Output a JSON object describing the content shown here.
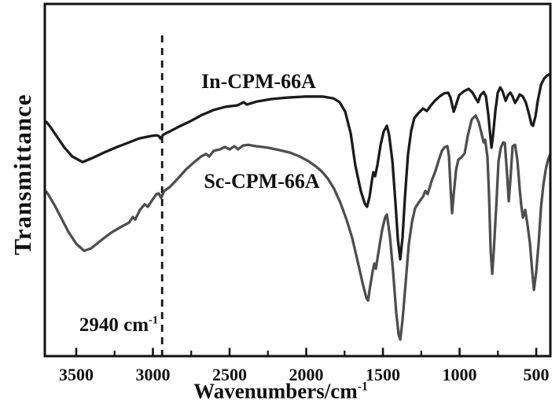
{
  "figure": {
    "y_axis_title": "Transmittance",
    "x_axis_title_base": "Wavenumbers/cm",
    "x_axis_title_sup": "-1",
    "annotation_text": "2940 cm",
    "annotation_sup": "-1",
    "label_top": "In-CPM-66A",
    "label_bottom": "Sc-CPM-66A"
  },
  "chart_data": {
    "type": "line",
    "title": "",
    "xlabel": "Wavenumbers/cm^-1",
    "ylabel": "Transmittance",
    "grid": false,
    "legend_position": "inline-labels",
    "x_axis": {
      "unit": "cm^-1",
      "direction": "decreasing",
      "range": [
        3705,
        408
      ],
      "major_ticks": [
        3500,
        3000,
        2500,
        2000,
        1500,
        1000,
        500
      ],
      "minor_ticks": [
        3250,
        2750,
        2250,
        1750,
        1250,
        750
      ],
      "tick_labels": [
        "3500",
        "3000",
        "2500",
        "2000",
        "1500",
        "1000",
        "500"
      ]
    },
    "y_axis": {
      "label": "Transmittance",
      "unit": "arbitrary",
      "range": [
        0,
        100
      ],
      "ticks": "none"
    },
    "reference_line": {
      "wavenumber": 2940,
      "label": "2940 cm^-1",
      "style": "dashed",
      "color": "#111111"
    },
    "frame_color": "#111111",
    "series": [
      {
        "name": "In-CPM-66A",
        "color": "#1b1b1b",
        "points": [
          [
            3695,
            66.5
          ],
          [
            3674,
            65.4
          ],
          [
            3649,
            63.8
          ],
          [
            3618,
            61.8
          ],
          [
            3577,
            59.2
          ],
          [
            3526,
            56.7
          ],
          [
            3459,
            55.1
          ],
          [
            3392,
            56.3
          ],
          [
            3320,
            57.8
          ],
          [
            3244,
            59.2
          ],
          [
            3167,
            60.5
          ],
          [
            3090,
            61.8
          ],
          [
            3013,
            62.5
          ],
          [
            2977,
            62.7
          ],
          [
            2962,
            62.5
          ],
          [
            2951,
            61.8
          ],
          [
            2931,
            62.9
          ],
          [
            2890,
            63.8
          ],
          [
            2828,
            65.2
          ],
          [
            2756,
            66.7
          ],
          [
            2679,
            68.5
          ],
          [
            2603,
            69.9
          ],
          [
            2526,
            70.8
          ],
          [
            2449,
            71.2
          ],
          [
            2408,
            72.1
          ],
          [
            2387,
            71.4
          ],
          [
            2321,
            72.3
          ],
          [
            2228,
            73.0
          ],
          [
            2126,
            73.4
          ],
          [
            2008,
            73.7
          ],
          [
            1895,
            73.7
          ],
          [
            1823,
            73.2
          ],
          [
            1782,
            72.1
          ],
          [
            1746,
            69.4
          ],
          [
            1710,
            63.2
          ],
          [
            1680,
            54.2
          ],
          [
            1644,
            46.9
          ],
          [
            1618,
            43.3
          ],
          [
            1603,
            42.4
          ],
          [
            1587,
            45.3
          ],
          [
            1572,
            49.8
          ],
          [
            1562,
            52.2
          ],
          [
            1551,
            51.1
          ],
          [
            1536,
            54.2
          ],
          [
            1515,
            60.0
          ],
          [
            1495,
            63.8
          ],
          [
            1474,
            65.4
          ],
          [
            1459,
            62.7
          ],
          [
            1438,
            55.4
          ],
          [
            1418,
            43.5
          ],
          [
            1402,
            33.0
          ],
          [
            1387,
            27.5
          ],
          [
            1372,
            33.7
          ],
          [
            1356,
            45.3
          ],
          [
            1336,
            57.4
          ],
          [
            1315,
            64.1
          ],
          [
            1295,
            67.6
          ],
          [
            1269,
            69.0
          ],
          [
            1238,
            70.3
          ],
          [
            1213,
            69.6
          ],
          [
            1187,
            71.2
          ],
          [
            1161,
            72.5
          ],
          [
            1131,
            73.7
          ],
          [
            1100,
            74.6
          ],
          [
            1074,
            74.8
          ],
          [
            1059,
            73.4
          ],
          [
            1038,
            69.4
          ],
          [
            1023,
            71.4
          ],
          [
            1003,
            74.1
          ],
          [
            972,
            75.2
          ],
          [
            941,
            75.9
          ],
          [
            915,
            74.8
          ],
          [
            895,
            73.2
          ],
          [
            879,
            72.1
          ],
          [
            864,
            74.1
          ],
          [
            843,
            75.0
          ],
          [
            828,
            73.7
          ],
          [
            813,
            68.8
          ],
          [
            802,
            63.6
          ],
          [
            792,
            59.2
          ],
          [
            782,
            62.7
          ],
          [
            766,
            69.9
          ],
          [
            751,
            74.8
          ],
          [
            735,
            76.3
          ],
          [
            720,
            75.2
          ],
          [
            700,
            72.5
          ],
          [
            684,
            74.1
          ],
          [
            669,
            74.8
          ],
          [
            654,
            73.7
          ],
          [
            638,
            71.9
          ],
          [
            623,
            73.0
          ],
          [
            608,
            74.3
          ],
          [
            587,
            73.7
          ],
          [
            567,
            71.9
          ],
          [
            546,
            68.5
          ],
          [
            531,
            65.8
          ],
          [
            521,
            65.4
          ],
          [
            505,
            68.1
          ],
          [
            490,
            72.5
          ],
          [
            469,
            77.0
          ],
          [
            449,
            78.8
          ],
          [
            428,
            79.7
          ],
          [
            408,
            80.1
          ]
        ]
      },
      {
        "name": "Sc-CPM-66A",
        "color": "#4e4e4e",
        "points": [
          [
            3695,
            46.7
          ],
          [
            3669,
            44.9
          ],
          [
            3638,
            42.6
          ],
          [
            3597,
            39.1
          ],
          [
            3551,
            35.3
          ],
          [
            3500,
            31.9
          ],
          [
            3449,
            29.9
          ],
          [
            3403,
            30.6
          ],
          [
            3346,
            32.6
          ],
          [
            3274,
            35.0
          ],
          [
            3203,
            36.8
          ],
          [
            3156,
            37.9
          ],
          [
            3131,
            39.5
          ],
          [
            3115,
            38.8
          ],
          [
            3085,
            41.5
          ],
          [
            3054,
            43.1
          ],
          [
            3033,
            42.4
          ],
          [
            3003,
            44.4
          ],
          [
            2977,
            46.0
          ],
          [
            2962,
            46.2
          ],
          [
            2946,
            44.9
          ],
          [
            2926,
            46.9
          ],
          [
            2890,
            48.0
          ],
          [
            2838,
            50.4
          ],
          [
            2782,
            53.1
          ],
          [
            2731,
            55.1
          ],
          [
            2685,
            56.7
          ],
          [
            2654,
            57.4
          ],
          [
            2633,
            56.7
          ],
          [
            2603,
            58.3
          ],
          [
            2562,
            58.7
          ],
          [
            2531,
            59.4
          ],
          [
            2500,
            58.7
          ],
          [
            2469,
            59.6
          ],
          [
            2444,
            58.7
          ],
          [
            2413,
            59.8
          ],
          [
            2377,
            60.0
          ],
          [
            2326,
            59.6
          ],
          [
            2254,
            59.2
          ],
          [
            2177,
            58.5
          ],
          [
            2105,
            57.8
          ],
          [
            2044,
            56.7
          ],
          [
            1987,
            55.4
          ],
          [
            1941,
            54.0
          ],
          [
            1900,
            52.5
          ],
          [
            1859,
            50.4
          ],
          [
            1818,
            47.5
          ],
          [
            1777,
            43.5
          ],
          [
            1736,
            38.6
          ],
          [
            1700,
            33.5
          ],
          [
            1664,
            26.8
          ],
          [
            1633,
            20.8
          ],
          [
            1608,
            16.5
          ],
          [
            1597,
            15.8
          ],
          [
            1582,
            20.1
          ],
          [
            1566,
            24.3
          ],
          [
            1556,
            26.3
          ],
          [
            1546,
            24.8
          ],
          [
            1526,
            30.4
          ],
          [
            1505,
            35.9
          ],
          [
            1485,
            39.5
          ],
          [
            1474,
            40.2
          ],
          [
            1454,
            33.9
          ],
          [
            1433,
            23.7
          ],
          [
            1413,
            12.3
          ],
          [
            1397,
            6.0
          ],
          [
            1387,
            4.7
          ],
          [
            1372,
            10.3
          ],
          [
            1351,
            21.2
          ],
          [
            1331,
            31.9
          ],
          [
            1310,
            38.2
          ],
          [
            1290,
            42.0
          ],
          [
            1264,
            43.8
          ],
          [
            1238,
            45.3
          ],
          [
            1223,
            46.9
          ],
          [
            1208,
            46.0
          ],
          [
            1182,
            49.8
          ],
          [
            1156,
            52.7
          ],
          [
            1136,
            55.6
          ],
          [
            1115,
            58.3
          ],
          [
            1095,
            59.4
          ],
          [
            1079,
            59.6
          ],
          [
            1069,
            56.7
          ],
          [
            1059,
            48.0
          ],
          [
            1049,
            40.6
          ],
          [
            1038,
            46.0
          ],
          [
            1023,
            52.9
          ],
          [
            1008,
            55.8
          ],
          [
            987,
            56.5
          ],
          [
            967,
            57.6
          ],
          [
            946,
            62.7
          ],
          [
            921,
            67.2
          ],
          [
            895,
            68.3
          ],
          [
            874,
            66.3
          ],
          [
            854,
            62.7
          ],
          [
            843,
            60.7
          ],
          [
            833,
            61.4
          ],
          [
            818,
            56.5
          ],
          [
            808,
            45.8
          ],
          [
            797,
            29.7
          ],
          [
            787,
            23.4
          ],
          [
            777,
            29.7
          ],
          [
            761,
            42.6
          ],
          [
            746,
            55.4
          ],
          [
            731,
            59.2
          ],
          [
            715,
            60.7
          ],
          [
            705,
            60.5
          ],
          [
            690,
            51.6
          ],
          [
            679,
            44.0
          ],
          [
            669,
            49.8
          ],
          [
            654,
            59.6
          ],
          [
            638,
            60.0
          ],
          [
            623,
            55.6
          ],
          [
            608,
            47.5
          ],
          [
            597,
            42.6
          ],
          [
            587,
            39.3
          ],
          [
            572,
            41.5
          ],
          [
            556,
            37.1
          ],
          [
            541,
            31.9
          ],
          [
            525,
            23.4
          ],
          [
            515,
            18.8
          ],
          [
            500,
            24.1
          ],
          [
            484,
            32.4
          ],
          [
            469,
            42.2
          ],
          [
            454,
            48.4
          ],
          [
            438,
            52.9
          ],
          [
            423,
            55.8
          ],
          [
            408,
            57.4
          ]
        ]
      }
    ]
  }
}
